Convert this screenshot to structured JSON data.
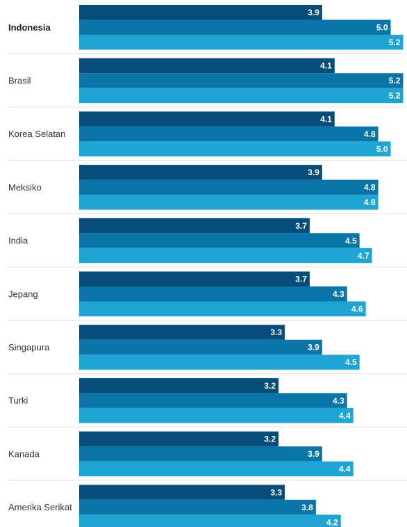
{
  "chart_data": {
    "type": "bar",
    "orientation": "horizontal",
    "categories": [
      "Indonesia",
      "Brasil",
      "Korea Selatan",
      "Meksiko",
      "India",
      "Jepang",
      "Singapura",
      "Turki",
      "Kanada",
      "Amerika Serikat"
    ],
    "highlighted_category": "Indonesia",
    "series": [
      {
        "color": "#064e79",
        "values": [
          3.9,
          4.1,
          4.1,
          3.9,
          3.7,
          3.7,
          3.3,
          3.2,
          3.2,
          3.3
        ]
      },
      {
        "color": "#0a76a8",
        "values": [
          5.0,
          5.2,
          4.8,
          4.8,
          4.5,
          4.3,
          3.9,
          4.3,
          3.9,
          3.8
        ]
      },
      {
        "color": "#1ea5d3",
        "values": [
          5.2,
          5.2,
          5.0,
          4.8,
          4.7,
          4.6,
          4.5,
          4.4,
          4.4,
          4.2
        ]
      }
    ],
    "grid": false,
    "legend": "none"
  }
}
